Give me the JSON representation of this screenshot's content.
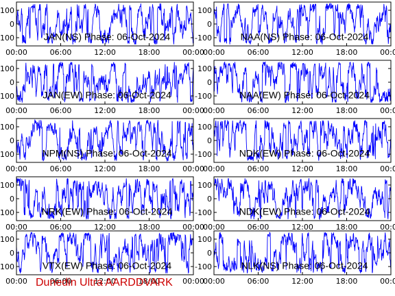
{
  "chart_data": [
    {
      "type": "line",
      "title": "JAN(NS) Phase: 06-Oct-2024",
      "yticks": [
        "100",
        "0",
        "-100"
      ],
      "ylim": [
        -160,
        160
      ],
      "xticks": [
        "00:00",
        "06:00",
        "12:00",
        "18:00",
        "00:00"
      ],
      "series_color": "#0000ff",
      "grid": false
    },
    {
      "type": "line",
      "title": "NAA(NS) Phase: 06-Oct-2024",
      "yticks": [
        "100",
        "0",
        "-100"
      ],
      "ylim": [
        -160,
        160
      ],
      "xticks": [
        "00:00",
        "06:00",
        "12:00",
        "18:00",
        "00:00"
      ],
      "series_color": "#0000ff",
      "grid": false
    },
    {
      "type": "line",
      "title": "JAN(EW) Phase: 06-Oct-2024",
      "yticks": [
        "100",
        "0",
        "-100"
      ],
      "ylim": [
        -160,
        160
      ],
      "xticks": [
        "00:00",
        "06:00",
        "12:00",
        "18:00",
        "00:00"
      ],
      "series_color": "#0000ff",
      "grid": false
    },
    {
      "type": "line",
      "title": "NAA(EW) Phase: 06-Oct-2024",
      "yticks": [
        "100",
        "0",
        "-100"
      ],
      "ylim": [
        -160,
        160
      ],
      "xticks": [
        "00:00",
        "06:00",
        "12:00",
        "18:00",
        "00:00"
      ],
      "series_color": "#0000ff",
      "grid": false
    },
    {
      "type": "line",
      "title": "NPM(NS) Phase: 06-Oct-2024",
      "yticks": [
        "100",
        "0",
        "-100"
      ],
      "ylim": [
        -160,
        160
      ],
      "xticks": [
        "00:00",
        "06:00",
        "12:00",
        "18:00",
        "00:00"
      ],
      "series_color": "#0000ff",
      "grid": false
    },
    {
      "type": "line",
      "title": "NDK(EW) Phase: 06-Oct-2024",
      "yticks": [
        "100",
        "0",
        "-100"
      ],
      "ylim": [
        -160,
        160
      ],
      "xticks": [
        "00:00",
        "06:00",
        "12:00",
        "18:00",
        "00:00"
      ],
      "series_color": "#0000ff",
      "grid": false
    },
    {
      "type": "line",
      "title": "NRK(EW) Phase: 06-Oct-2024",
      "yticks": [
        "100",
        "0",
        "-100"
      ],
      "ylim": [
        -160,
        160
      ],
      "xticks": [
        "00:00",
        "06:00",
        "12:00",
        "18:00",
        "00:00"
      ],
      "series_color": "#0000ff",
      "grid": false
    },
    {
      "type": "line",
      "title": "NDK(EW) Phase: 06-Oct-2024",
      "yticks": [
        "100",
        "0",
        "-100"
      ],
      "ylim": [
        -160,
        160
      ],
      "xticks": [
        "00:00",
        "06:00",
        "12:00",
        "18:00",
        "00:00"
      ],
      "series_color": "#0000ff",
      "grid": false
    },
    {
      "type": "line",
      "title": "VTX(EW) Phase: 06-Oct-2024",
      "yticks": [
        "100",
        "0",
        "-100"
      ],
      "ylim": [
        -160,
        160
      ],
      "xticks": [
        "00:00",
        "06:00",
        "12:00",
        "18:00",
        "00:00"
      ],
      "series_color": "#0000ff",
      "grid": false
    },
    {
      "type": "line",
      "title": "NLK(NS) Phase: 06-Oct-2024",
      "yticks": [
        "100",
        "0",
        "-100"
      ],
      "ylim": [
        -160,
        160
      ],
      "xticks": [
        "00:00",
        "06:00",
        "12:00",
        "18:00",
        "00:00"
      ],
      "series_color": "#0000ff",
      "grid": false
    }
  ],
  "footer": {
    "text": "Dunedin Ultra AARDDVARK"
  }
}
